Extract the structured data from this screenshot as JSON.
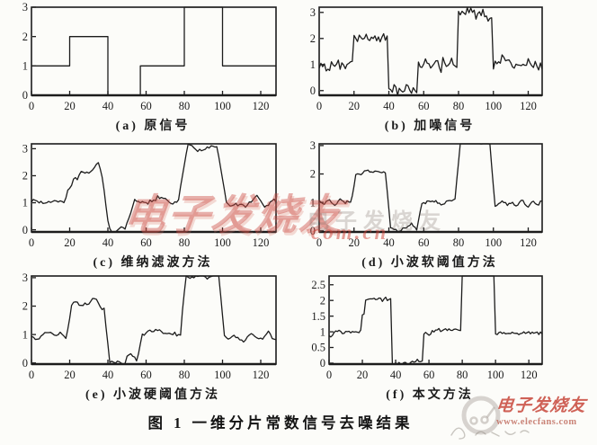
{
  "figure": {
    "caption": "图 1  一维分片常数信号去噪结果"
  },
  "watermarks": {
    "center_text": "电子发烧友",
    "overlay_cjk_text": "电子发烧友",
    "overlay_url_text": "com.cn",
    "brand_text": "电子发烧友",
    "brand_url": "www.elecfans.com",
    "red_color": "#c83e32"
  },
  "ink_color": "#1c1c1c",
  "chart_data": [
    {
      "id": "a",
      "type": "line",
      "caption": "(a) 原信号",
      "xlabel": "",
      "ylabel": "",
      "grid": false,
      "legend": "none",
      "xlim": [
        0,
        128
      ],
      "ylim": [
        0,
        3
      ],
      "x_ticks": [
        0,
        20,
        40,
        60,
        80,
        100,
        120
      ],
      "y_ticks": [
        0,
        1,
        2,
        3
      ],
      "segments": [
        {
          "from": 0,
          "to": 20,
          "value": 1
        },
        {
          "from": 20,
          "to": 40,
          "value": 2
        },
        {
          "from": 40,
          "to": 57,
          "value": 0
        },
        {
          "from": 57,
          "to": 80,
          "value": 1
        },
        {
          "from": 80,
          "to": 100,
          "value": 3
        },
        {
          "from": 100,
          "to": 128,
          "value": 1
        }
      ],
      "noise_sd": 0,
      "smooth": 0
    },
    {
      "id": "b",
      "type": "line",
      "caption": "(b) 加噪信号",
      "xlabel": "",
      "ylabel": "",
      "grid": false,
      "legend": "none",
      "xlim": [
        0,
        128
      ],
      "ylim": [
        -0.18,
        3.2
      ],
      "x_ticks": [
        0,
        20,
        40,
        60,
        80,
        100,
        120
      ],
      "y_ticks": [
        0,
        1,
        2,
        3
      ],
      "segments": [
        {
          "from": 0,
          "to": 20,
          "value": 1
        },
        {
          "from": 20,
          "to": 40,
          "value": 2
        },
        {
          "from": 40,
          "to": 57,
          "value": 0
        },
        {
          "from": 57,
          "to": 80,
          "value": 1
        },
        {
          "from": 80,
          "to": 100,
          "value": 3
        },
        {
          "from": 100,
          "to": 128,
          "value": 1
        }
      ],
      "noise_sd": 0.13,
      "smooth": 0
    },
    {
      "id": "c",
      "type": "line",
      "caption": "(c) 维纳滤波方法",
      "xlabel": "",
      "ylabel": "",
      "grid": false,
      "legend": "none",
      "xlim": [
        0,
        128
      ],
      "ylim": [
        -0.08,
        3.18
      ],
      "x_ticks": [
        0,
        20,
        40,
        60,
        80,
        100,
        120
      ],
      "y_ticks": [
        0,
        1,
        2,
        3
      ],
      "segments": [
        {
          "from": 0,
          "to": 20,
          "value": 1.0
        },
        {
          "from": 20,
          "to": 32,
          "value": 2.05
        },
        {
          "from": 32,
          "to": 38,
          "value": 2.3
        },
        {
          "from": 38,
          "to": 40,
          "value": 1.1
        },
        {
          "from": 40,
          "to": 52,
          "value": 0.07
        },
        {
          "from": 52,
          "to": 58,
          "value": 1.2
        },
        {
          "from": 58,
          "to": 80,
          "value": 1.05
        },
        {
          "from": 80,
          "to": 100,
          "value": 3.08
        },
        {
          "from": 100,
          "to": 128,
          "value": 1.0
        }
      ],
      "noise_sd": 0.2,
      "smooth": 5
    },
    {
      "id": "d",
      "type": "line",
      "caption": "(d) 小波软阈值方法",
      "xlabel": "",
      "ylabel": "",
      "grid": false,
      "legend": "none",
      "xlim": [
        0,
        128
      ],
      "ylim": [
        -0.04,
        3.06
      ],
      "x_ticks": [
        0,
        20,
        40,
        60,
        80,
        100,
        120
      ],
      "y_ticks": [
        0,
        1,
        2,
        3
      ],
      "segments": [
        {
          "from": 0,
          "to": 20,
          "value": 1.0
        },
        {
          "from": 20,
          "to": 40,
          "value": 2.05
        },
        {
          "from": 40,
          "to": 52,
          "value": 0.03
        },
        {
          "from": 52,
          "to": 56,
          "value": 0.18
        },
        {
          "from": 56,
          "to": 58,
          "value": 0.03
        },
        {
          "from": 58,
          "to": 80,
          "value": 1.05
        },
        {
          "from": 80,
          "to": 100,
          "value": 3.1
        },
        {
          "from": 100,
          "to": 128,
          "value": 0.95
        }
      ],
      "noise_sd": 0.12,
      "smooth": 3
    },
    {
      "id": "e",
      "type": "line",
      "caption": "(e) 小波硬阈值方法",
      "xlabel": "",
      "ylabel": "",
      "grid": false,
      "legend": "none",
      "xlim": [
        0,
        128
      ],
      "ylim": [
        -0.04,
        3.06
      ],
      "x_ticks": [
        0,
        20,
        40,
        60,
        80,
        100,
        120
      ],
      "y_ticks": [
        0,
        1,
        2,
        3
      ],
      "segments": [
        {
          "from": 0,
          "to": 20,
          "value": 1.0
        },
        {
          "from": 20,
          "to": 31,
          "value": 2.0
        },
        {
          "from": 31,
          "to": 36,
          "value": 2.2
        },
        {
          "from": 36,
          "to": 40,
          "value": 2.0
        },
        {
          "from": 40,
          "to": 50,
          "value": 0.0
        },
        {
          "from": 50,
          "to": 55,
          "value": 0.25
        },
        {
          "from": 55,
          "to": 57,
          "value": 0.0
        },
        {
          "from": 57,
          "to": 80,
          "value": 1.0
        },
        {
          "from": 80,
          "to": 100,
          "value": 3.1
        },
        {
          "from": 100,
          "to": 128,
          "value": 0.92
        }
      ],
      "noise_sd": 0.13,
      "smooth": 3
    },
    {
      "id": "f",
      "type": "line",
      "caption": "(f) 本文方法",
      "xlabel": "",
      "ylabel": "",
      "grid": false,
      "legend": "none",
      "xlim": [
        0,
        128
      ],
      "ylim": [
        -0.03,
        2.78
      ],
      "x_ticks": [
        0,
        20,
        40,
        60,
        80,
        100,
        120
      ],
      "y_ticks": [
        0,
        0.5,
        1,
        1.5,
        2,
        2.5
      ],
      "segments": [
        {
          "from": 0,
          "to": 3,
          "value": 0.88
        },
        {
          "from": 3,
          "to": 20,
          "value": 1.0
        },
        {
          "from": 20,
          "to": 22,
          "value": 1.55
        },
        {
          "from": 22,
          "to": 38,
          "value": 2.05
        },
        {
          "from": 38,
          "to": 50,
          "value": 0.0
        },
        {
          "from": 50,
          "to": 57,
          "value": 0.07
        },
        {
          "from": 57,
          "to": 62,
          "value": 0.95
        },
        {
          "from": 62,
          "to": 80,
          "value": 1.06
        },
        {
          "from": 80,
          "to": 100,
          "value": 3.0
        },
        {
          "from": 100,
          "to": 128,
          "value": 0.96
        }
      ],
      "noise_sd": 0.03,
      "smooth": 0
    }
  ]
}
